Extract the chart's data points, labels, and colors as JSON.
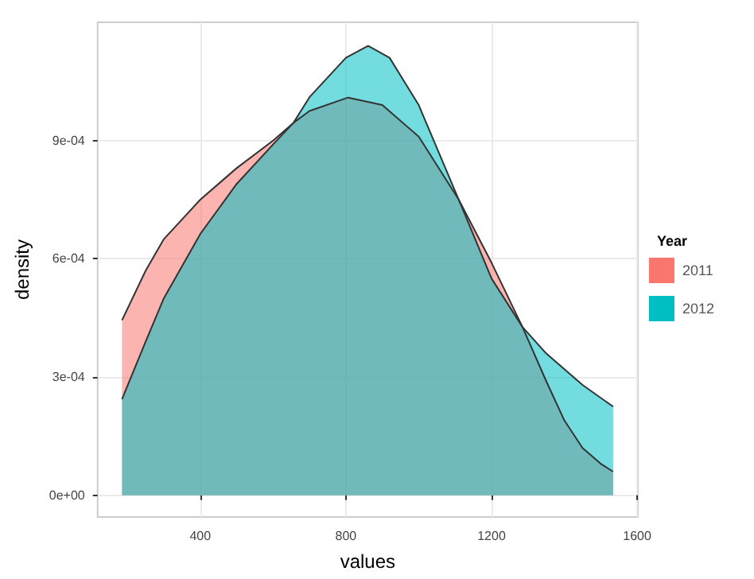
{
  "chart_data": {
    "type": "area",
    "xlabel": "values",
    "ylabel": "density",
    "legend_title": "Year",
    "legend": "right",
    "grid": true,
    "xlim": [
      118,
      1602
    ],
    "xticks": [
      400,
      800,
      1200,
      1600
    ],
    "ylim": [
      -5.5e-05,
      0.0012
    ],
    "yticks": [
      {
        "value": 0,
        "label": "0e+00"
      },
      {
        "value": 0.0003,
        "label": "3e-04"
      },
      {
        "value": 0.0006,
        "label": "6e-04"
      },
      {
        "value": 0.0009,
        "label": "9e-04"
      }
    ],
    "series": [
      {
        "name": "2011",
        "color": "#f8766d",
        "x": [
          185,
          250,
          300,
          400,
          500,
          600,
          656,
          700,
          806,
          900,
          1000,
          1110,
          1200,
          1285,
          1350,
          1400,
          1450,
          1500,
          1534
        ],
        "values": [
          0.000444,
          0.00057,
          0.00065,
          0.00075,
          0.00083,
          0.0009,
          0.000945,
          0.000975,
          0.001009,
          0.00099,
          0.00091,
          0.00075,
          0.00059,
          0.000427,
          0.00029,
          0.00019,
          0.00012,
          8e-05,
          6e-05
        ]
      },
      {
        "name": "2012",
        "color": "#00bfc4",
        "x": [
          185,
          250,
          300,
          400,
          500,
          600,
          656,
          700,
          800,
          861,
          920,
          1000,
          1110,
          1200,
          1285,
          1350,
          1450,
          1534
        ],
        "values": [
          0.000244,
          0.00039,
          0.0005,
          0.000663,
          0.00079,
          0.00089,
          0.000945,
          0.00101,
          0.00111,
          0.00114,
          0.00111,
          0.00099,
          0.00075,
          0.00055,
          0.000427,
          0.00036,
          0.00028,
          0.000225
        ]
      }
    ]
  }
}
